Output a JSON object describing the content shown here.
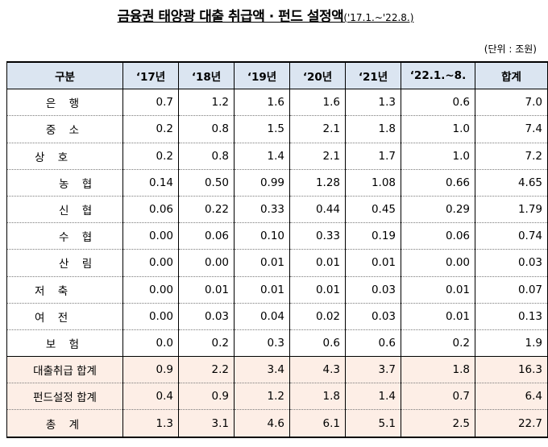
{
  "title": {
    "main": "금융권 태양광 대출 취급액 · 펀드 설정액",
    "period": "('17.1.~'22.8.)"
  },
  "unit": "(단위 : 조원)",
  "table": {
    "headers": [
      "구분",
      "‘17년",
      "‘18년",
      "‘19년",
      "‘20년",
      "‘21년",
      "‘22.1.~8.",
      "합계"
    ],
    "rows": [
      {
        "label": "은 행",
        "values": [
          "0.7",
          "1.2",
          "1.6",
          "1.6",
          "1.3",
          "0.6",
          "7.0"
        ]
      },
      {
        "label": "중 소",
        "values": [
          "0.2",
          "0.8",
          "1.5",
          "2.1",
          "1.8",
          "1.0",
          "7.4"
        ]
      },
      {
        "label": "상 호",
        "values": [
          "0.2",
          "0.8",
          "1.4",
          "2.1",
          "1.7",
          "1.0",
          "7.2"
        ]
      },
      {
        "label": "농 협",
        "values": [
          "0.14",
          "0.50",
          "0.99",
          "1.28",
          "1.08",
          "0.66",
          "4.65"
        ]
      },
      {
        "label": "신 협",
        "values": [
          "0.06",
          "0.22",
          "0.33",
          "0.44",
          "0.45",
          "0.29",
          "1.79"
        ]
      },
      {
        "label": "수 협",
        "values": [
          "0.00",
          "0.06",
          "0.10",
          "0.33",
          "0.19",
          "0.06",
          "0.74"
        ]
      },
      {
        "label": "산 림",
        "values": [
          "0.00",
          "0.00",
          "0.01",
          "0.01",
          "0.01",
          "0.00",
          "0.03"
        ]
      },
      {
        "label": "저 축",
        "values": [
          "0.00",
          "0.01",
          "0.01",
          "0.01",
          "0.03",
          "0.01",
          "0.07"
        ]
      },
      {
        "label": "여 전",
        "values": [
          "0.00",
          "0.03",
          "0.04",
          "0.02",
          "0.03",
          "0.01",
          "0.13"
        ]
      },
      {
        "label": "보 험",
        "values": [
          "0.0",
          "0.2",
          "0.3",
          "0.6",
          "0.6",
          "0.2",
          "1.9"
        ]
      },
      {
        "label": "대출취급 합계",
        "values": [
          "0.9",
          "2.2",
          "3.4",
          "4.3",
          "3.7",
          "1.8",
          "16.3"
        ]
      },
      {
        "label": "펀드설정 합계",
        "values": [
          "0.4",
          "0.9",
          "1.2",
          "1.8",
          "1.4",
          "0.7",
          "6.4"
        ]
      },
      {
        "label": "총 계",
        "values": [
          "1.3",
          "3.1",
          "4.6",
          "6.1",
          "5.1",
          "2.5",
          "22.7"
        ]
      }
    ]
  },
  "colors": {
    "header_bg": "#dbe5f1",
    "total_bg": "#fdeee6"
  }
}
